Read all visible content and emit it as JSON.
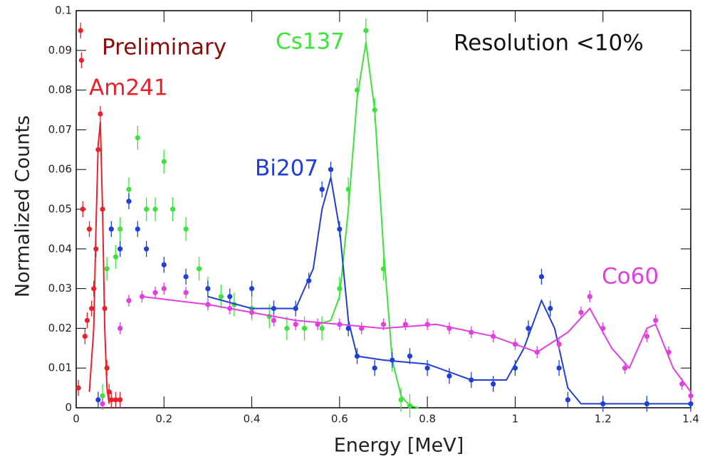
{
  "chart_data": {
    "type": "scatter",
    "x_label": "Energy [MeV]",
    "y_label": "Normalized Counts",
    "annotations": [
      "Preliminary",
      "Resolution <10%"
    ],
    "xlim": [
      0,
      1.4
    ],
    "xticks": [
      0,
      0.2,
      0.4,
      0.6,
      0.8,
      1,
      1.2,
      1.4
    ],
    "ylim": [
      0,
      0.1
    ],
    "yticks": [
      0,
      0.01,
      0.02,
      0.03,
      0.04,
      0.05,
      0.06,
      0.07,
      0.08,
      0.09,
      0.1
    ],
    "series": [
      {
        "name": "Am241",
        "color": "#e8212a",
        "error": 0.002,
        "x": [
          0.005,
          0.01,
          0.012,
          0.015,
          0.02,
          0.025,
          0.03,
          0.035,
          0.04,
          0.045,
          0.05,
          0.055,
          0.06,
          0.065,
          0.07,
          0.075,
          0.08,
          0.09,
          0.1
        ],
        "values": [
          0.005,
          0.095,
          0.0875,
          0.05,
          0.018,
          0.022,
          0.045,
          0.025,
          0.03,
          0.04,
          0.065,
          0.074,
          0.05,
          0.025,
          0.01,
          0.004,
          0.002,
          0.002,
          0.002
        ],
        "fit": {
          "x": [
            0.03,
            0.04,
            0.045,
            0.05,
            0.055,
            0.06,
            0.065,
            0.07,
            0.075
          ],
          "values": [
            0.004,
            0.02,
            0.045,
            0.066,
            0.072,
            0.05,
            0.02,
            0.005,
            0.001
          ]
        }
      },
      {
        "name": "Cs137",
        "color": "#3de33a",
        "error": 0.003,
        "x": [
          0.06,
          0.07,
          0.09,
          0.1,
          0.12,
          0.14,
          0.16,
          0.18,
          0.2,
          0.22,
          0.25,
          0.28,
          0.3,
          0.33,
          0.36,
          0.4,
          0.44,
          0.48,
          0.52,
          0.56,
          0.6,
          0.62,
          0.64,
          0.66,
          0.68,
          0.7,
          0.72,
          0.74,
          0.76
        ],
        "values": [
          0.003,
          0.035,
          0.038,
          0.045,
          0.055,
          0.068,
          0.05,
          0.05,
          0.062,
          0.05,
          0.045,
          0.035,
          0.03,
          0.028,
          0.026,
          0.025,
          0.023,
          0.02,
          0.02,
          0.02,
          0.03,
          0.055,
          0.08,
          0.095,
          0.075,
          0.035,
          0.012,
          0.002,
          0.0005
        ],
        "fit": {
          "x": [
            0.55,
            0.58,
            0.6,
            0.62,
            0.64,
            0.66,
            0.68,
            0.7,
            0.72,
            0.74,
            0.76,
            0.78
          ],
          "values": [
            0.021,
            0.022,
            0.028,
            0.05,
            0.078,
            0.092,
            0.075,
            0.04,
            0.012,
            0.003,
            0.0005,
            0
          ]
        }
      },
      {
        "name": "Bi207",
        "color": "#1f3fd6",
        "error": 0.002,
        "x": [
          0.05,
          0.08,
          0.1,
          0.12,
          0.14,
          0.16,
          0.2,
          0.25,
          0.3,
          0.35,
          0.4,
          0.45,
          0.5,
          0.53,
          0.56,
          0.58,
          0.6,
          0.62,
          0.64,
          0.68,
          0.72,
          0.76,
          0.8,
          0.85,
          0.9,
          0.95,
          1.0,
          1.03,
          1.06,
          1.08,
          1.1,
          1.12,
          1.2,
          1.3,
          1.4
        ],
        "values": [
          0.002,
          0.045,
          0.04,
          0.052,
          0.045,
          0.04,
          0.036,
          0.033,
          0.03,
          0.028,
          0.03,
          0.025,
          0.025,
          0.032,
          0.055,
          0.06,
          0.045,
          0.02,
          0.013,
          0.01,
          0.012,
          0.013,
          0.01,
          0.008,
          0.007,
          0.006,
          0.01,
          0.02,
          0.033,
          0.025,
          0.01,
          0.002,
          0.001,
          0.001,
          0.001
        ],
        "fit": {
          "x": [
            0.3,
            0.4,
            0.5,
            0.54,
            0.56,
            0.58,
            0.6,
            0.62,
            0.64,
            0.7,
            0.8,
            0.9,
            0.98,
            1.02,
            1.06,
            1.09,
            1.12,
            1.15,
            1.4
          ],
          "values": [
            0.028,
            0.025,
            0.025,
            0.035,
            0.05,
            0.058,
            0.045,
            0.022,
            0.013,
            0.012,
            0.011,
            0.007,
            0.007,
            0.015,
            0.027,
            0.02,
            0.005,
            0.001,
            0.001
          ]
        }
      },
      {
        "name": "Co60",
        "color": "#e23ee0",
        "error": 0.0015,
        "x": [
          0.06,
          0.1,
          0.12,
          0.15,
          0.18,
          0.2,
          0.25,
          0.3,
          0.35,
          0.4,
          0.45,
          0.5,
          0.55,
          0.6,
          0.65,
          0.7,
          0.75,
          0.8,
          0.85,
          0.9,
          0.95,
          1.0,
          1.05,
          1.1,
          1.15,
          1.17,
          1.2,
          1.25,
          1.3,
          1.32,
          1.35,
          1.38,
          1.4
        ],
        "values": [
          0.001,
          0.02,
          0.027,
          0.028,
          0.029,
          0.03,
          0.029,
          0.026,
          0.025,
          0.024,
          0.022,
          0.021,
          0.021,
          0.021,
          0.02,
          0.021,
          0.021,
          0.021,
          0.02,
          0.019,
          0.018,
          0.016,
          0.014,
          0.016,
          0.024,
          0.028,
          0.02,
          0.01,
          0.018,
          0.022,
          0.014,
          0.006,
          0.003
        ],
        "fit": {
          "x": [
            0.15,
            0.3,
            0.5,
            0.7,
            0.82,
            0.95,
            1.05,
            1.12,
            1.17,
            1.22,
            1.26,
            1.3,
            1.32,
            1.36,
            1.4
          ],
          "values": [
            0.028,
            0.026,
            0.022,
            0.02,
            0.021,
            0.018,
            0.014,
            0.019,
            0.025,
            0.015,
            0.01,
            0.02,
            0.021,
            0.01,
            0.004
          ]
        }
      }
    ]
  }
}
